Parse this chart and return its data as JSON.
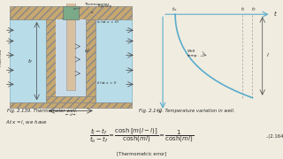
{
  "bg_color": "#f0ece0",
  "fig_caption_left": "Fig. 2.139. Thermometer well.",
  "fig_caption_right": "Fig. 2.140. Temperature variation in well.",
  "eq_prefix": "At x = l, we have",
  "eq_number": "..(2.164)",
  "eq_label": "[Thermometric error]",
  "text_color": "#2a2a2a",
  "fluid_color": "#b8dce8",
  "wall_color": "#c8a870",
  "well_fluid_color": "#c8dce8",
  "therm_stem_color": "#d8c0a0",
  "therm_top_color": "#7aaa88",
  "graph_curve_color": "#5aaccc",
  "dashed_color": "#aaaaaa",
  "arrow_color": "#5aaccc"
}
